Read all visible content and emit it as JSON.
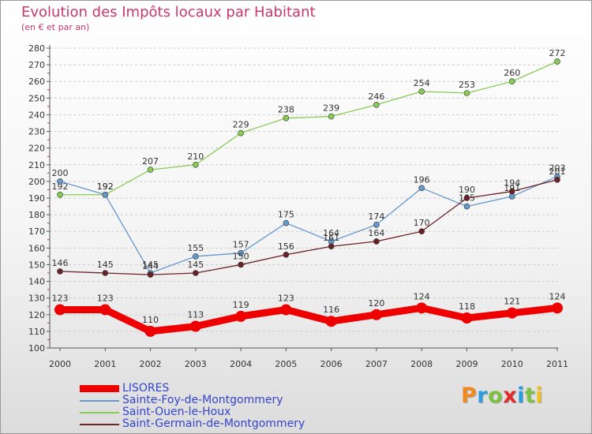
{
  "title": "Evolution des Impôts locaux par Habitant",
  "subtitle": "(en € et par an)",
  "logo": {
    "text": "Proxiti",
    "colors": [
      "#f08a1e",
      "#2d9be0",
      "#7cc242",
      "#e02b2b",
      "#2d9be0",
      "#7cc242",
      "#f0c01e"
    ]
  },
  "chart_data": {
    "type": "line",
    "x": [
      "2000",
      "2001",
      "2002",
      "2003",
      "2004",
      "2005",
      "2006",
      "2007",
      "2008",
      "2009",
      "2010",
      "2011"
    ],
    "ylim": [
      100,
      280
    ],
    "yticks": [
      "100",
      "110",
      "120",
      "130",
      "140",
      "150",
      "160",
      "170",
      "180",
      "190",
      "200",
      "210",
      "220",
      "230",
      "240",
      "250",
      "260",
      "270",
      "280"
    ],
    "grid": true,
    "legend_position": "bottom-left",
    "series": [
      {
        "name": "LISORES",
        "color": "#ee0000",
        "values": [
          123,
          123,
          110,
          113,
          119,
          123,
          116,
          120,
          124,
          118,
          121,
          124
        ]
      },
      {
        "name": "Sainte-Foy-de-Montgommery",
        "color": "#6699cc",
        "values": [
          200,
          192,
          145,
          155,
          157,
          175,
          164,
          174,
          196,
          185,
          191,
          203
        ]
      },
      {
        "name": "Saint-Ouen-le-Houx",
        "color": "#88cc55",
        "values": [
          192,
          192,
          207,
          210,
          229,
          238,
          239,
          246,
          254,
          253,
          260,
          272
        ]
      },
      {
        "name": "Saint-Germain-de-Montgommery",
        "color": "#6b2128",
        "values": [
          146,
          145,
          144,
          145,
          150,
          156,
          161,
          164,
          170,
          190,
          194,
          201
        ]
      }
    ]
  }
}
